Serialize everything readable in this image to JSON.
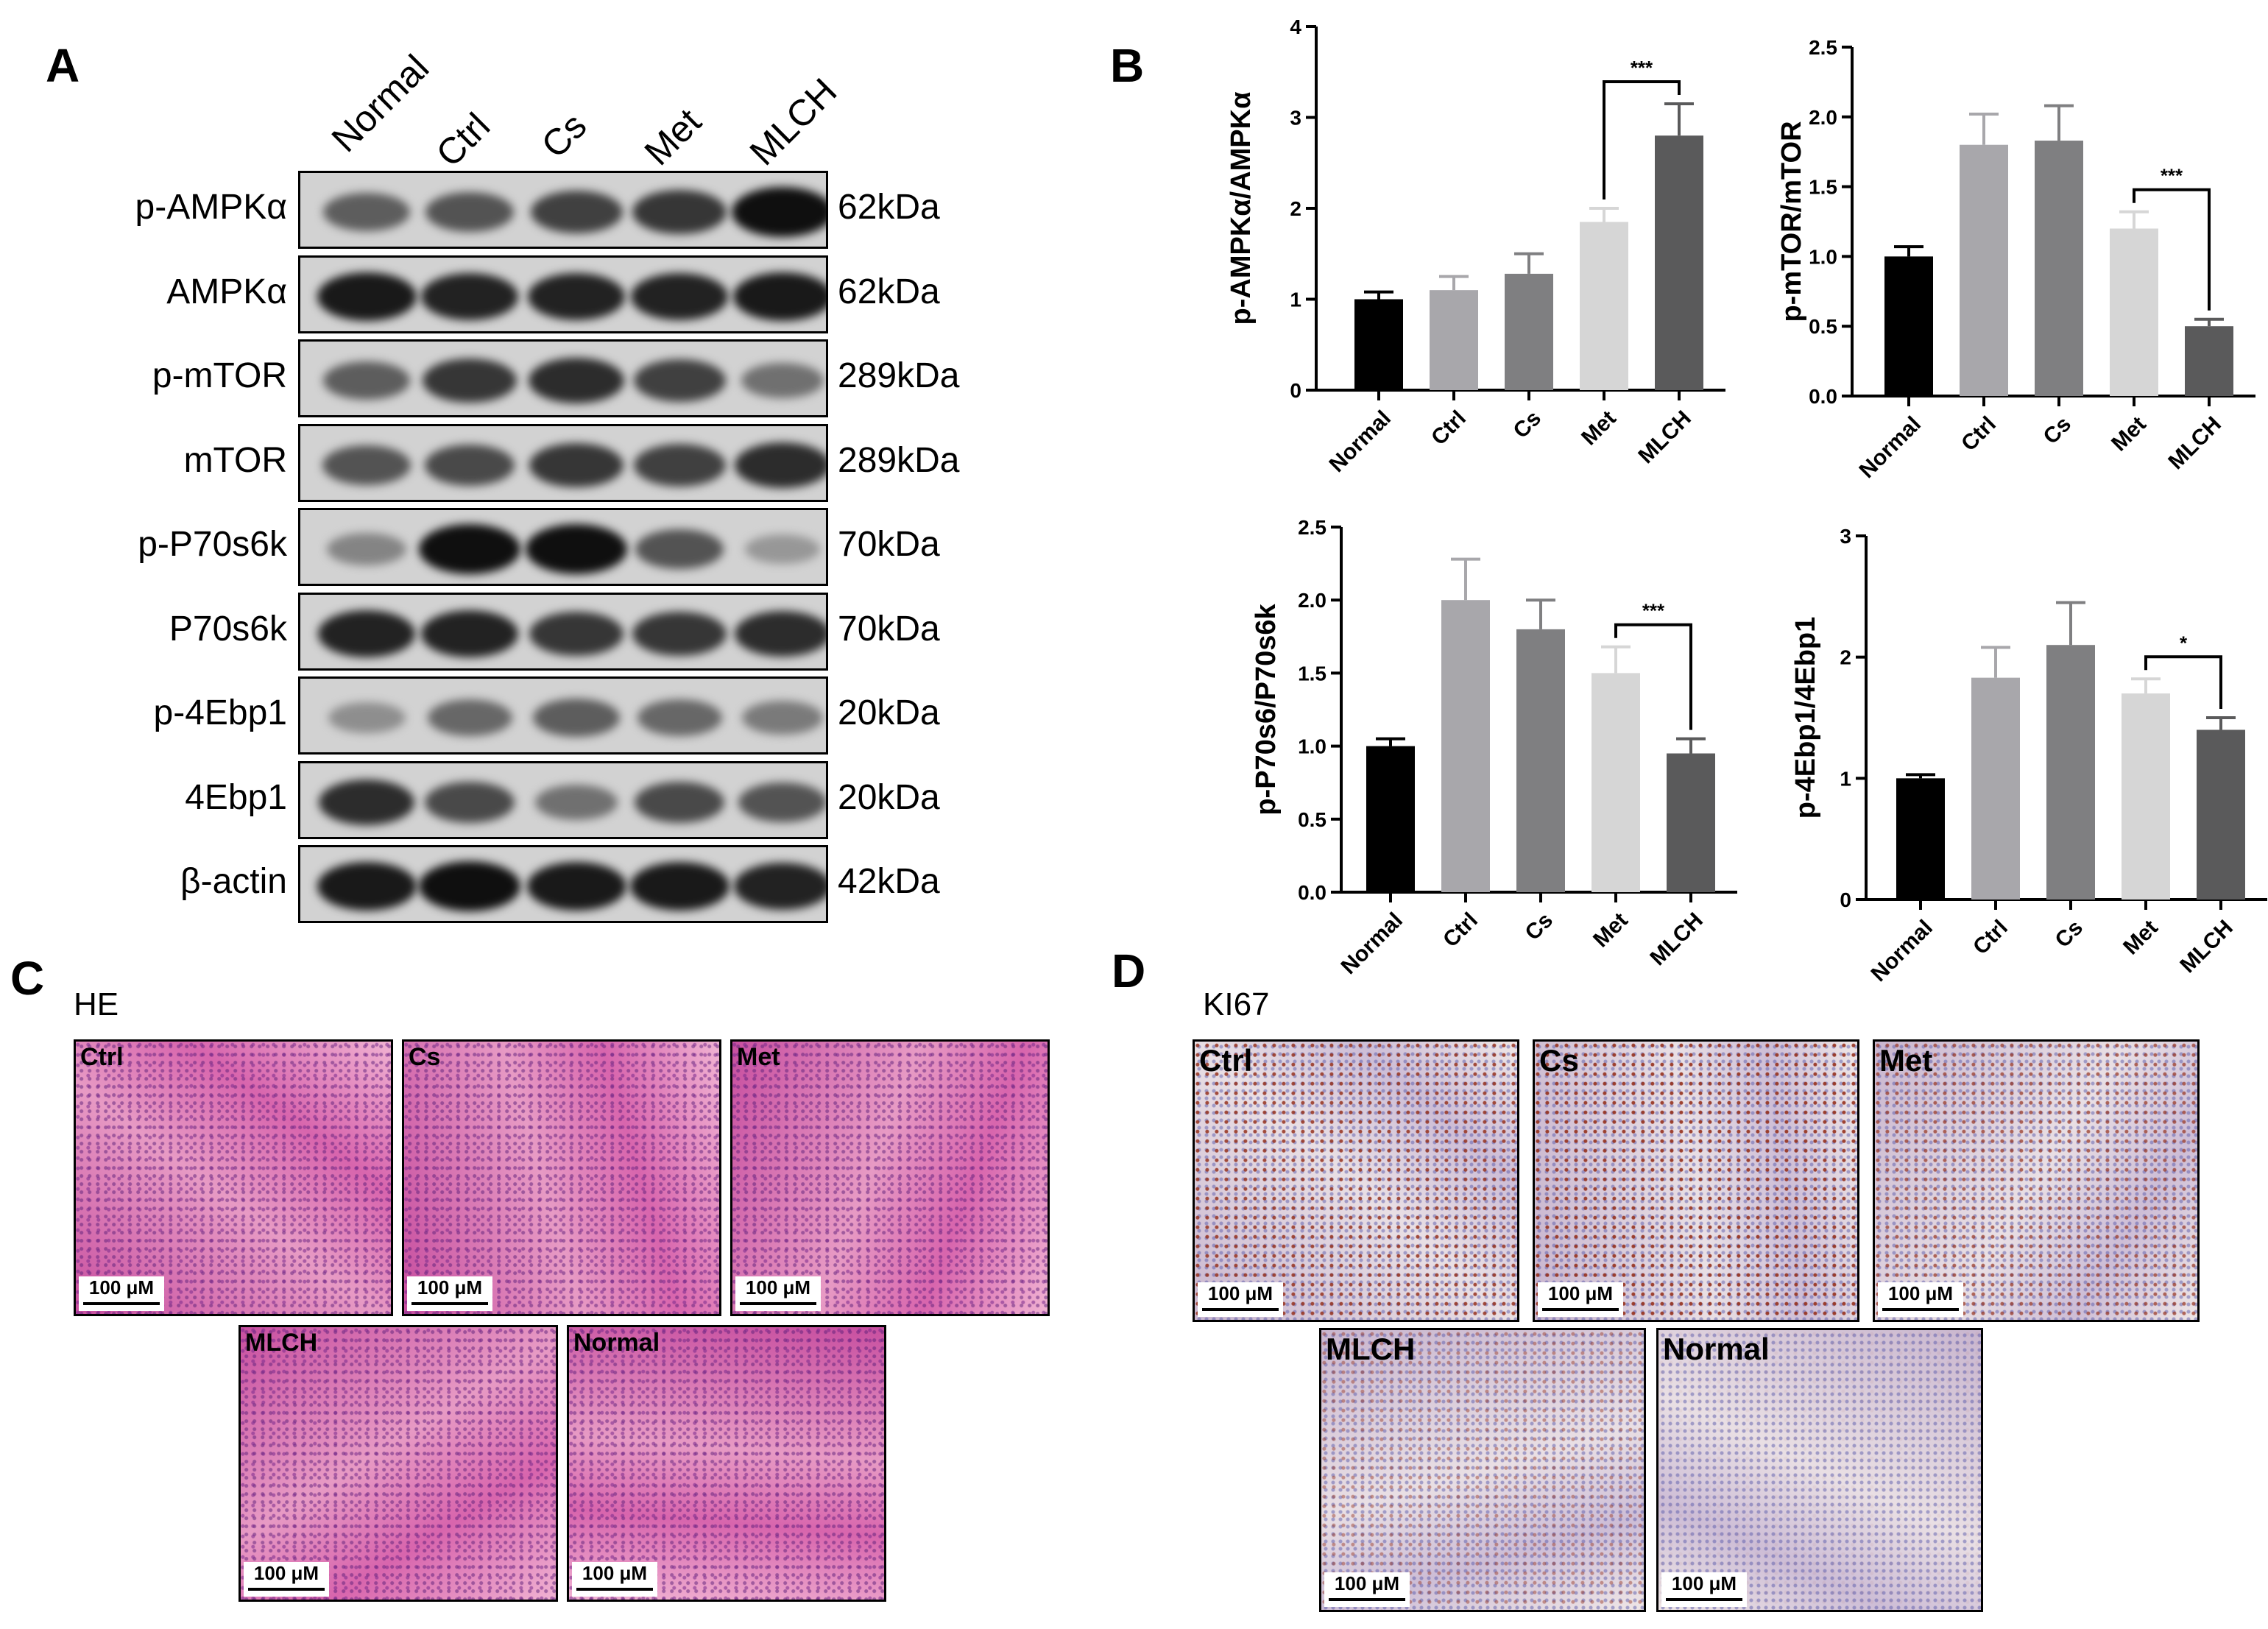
{
  "panels": {
    "a": "A",
    "b": "B",
    "c": "C",
    "d": "D"
  },
  "western_blot": {
    "lanes": [
      "Normal",
      "Ctrl",
      "Cs",
      "Met",
      "MLCH"
    ],
    "rows": [
      {
        "protein": "p-AMPKα",
        "kda": "62kDa",
        "intensity": [
          0.55,
          0.6,
          0.7,
          0.75,
          0.95
        ]
      },
      {
        "protein": "AMPKα",
        "kda": "62kDa",
        "intensity": [
          0.9,
          0.85,
          0.85,
          0.85,
          0.9
        ]
      },
      {
        "protein": "p-mTOR",
        "kda": "289kDa",
        "intensity": [
          0.55,
          0.75,
          0.8,
          0.7,
          0.45
        ]
      },
      {
        "protein": "mTOR",
        "kda": "289kDa",
        "intensity": [
          0.6,
          0.65,
          0.75,
          0.7,
          0.8
        ]
      },
      {
        "protein": "p-P70s6k",
        "kda": "70kDa",
        "intensity": [
          0.35,
          0.95,
          0.95,
          0.6,
          0.25
        ]
      },
      {
        "protein": "P70s6k",
        "kda": "70kDa",
        "intensity": [
          0.85,
          0.85,
          0.75,
          0.75,
          0.8
        ]
      },
      {
        "protein": "p-4Ebp1",
        "kda": "20kDa",
        "intensity": [
          0.3,
          0.5,
          0.55,
          0.5,
          0.4
        ]
      },
      {
        "protein": "4Ebp1",
        "kda": "20kDa",
        "intensity": [
          0.8,
          0.65,
          0.45,
          0.65,
          0.6
        ]
      },
      {
        "protein": "β-actin",
        "kda": "42kDa",
        "intensity": [
          0.9,
          0.95,
          0.9,
          0.9,
          0.85
        ]
      }
    ]
  },
  "chart_data": [
    {
      "type": "bar",
      "categories": [
        "Normal",
        "Ctrl",
        "Cs",
        "Met",
        "MLCH"
      ],
      "values": [
        1.0,
        1.1,
        1.28,
        1.85,
        2.8
      ],
      "errors": [
        0.08,
        0.15,
        0.22,
        0.15,
        0.35
      ],
      "ylabel": "p-AMPKα/AMPKα",
      "ylim": [
        0,
        4
      ],
      "yticks": [
        0,
        1,
        2,
        3,
        4
      ],
      "ytick_labels": [
        "0",
        "1",
        "2",
        "3",
        "4"
      ],
      "significance": {
        "from": 3,
        "to": 4,
        "label": "***"
      },
      "colors": [
        "#000000",
        "#a8a7ab",
        "#7f7f81",
        "#d6d6d6",
        "#5a5a5b"
      ]
    },
    {
      "type": "bar",
      "categories": [
        "Normal",
        "Ctrl",
        "Cs",
        "Met",
        "MLCH"
      ],
      "values": [
        1.0,
        1.8,
        1.83,
        1.2,
        0.5
      ],
      "errors": [
        0.07,
        0.22,
        0.25,
        0.12,
        0.05
      ],
      "ylabel": "p-mTOR/mTOR",
      "ylim": [
        0,
        2.5
      ],
      "yticks": [
        0,
        0.5,
        1.0,
        1.5,
        2.0,
        2.5
      ],
      "ytick_labels": [
        "0.0",
        "0.5",
        "1.0",
        "1.5",
        "2.0",
        "2.5"
      ],
      "significance": {
        "from": 3,
        "to": 4,
        "label": "***"
      },
      "colors": [
        "#000000",
        "#a8a7ab",
        "#7f7f81",
        "#d6d6d6",
        "#5a5a5b"
      ]
    },
    {
      "type": "bar",
      "categories": [
        "Normal",
        "Ctrl",
        "Cs",
        "Met",
        "MLCH"
      ],
      "values": [
        1.0,
        2.0,
        1.8,
        1.5,
        0.95
      ],
      "errors": [
        0.05,
        0.28,
        0.2,
        0.18,
        0.1
      ],
      "ylabel": "p-P70s6/P70s6k",
      "ylim": [
        0,
        2.5
      ],
      "yticks": [
        0,
        0.5,
        1.0,
        1.5,
        2.0,
        2.5
      ],
      "ytick_labels": [
        "0.0",
        "0.5",
        "1.0",
        "1.5",
        "2.0",
        "2.5"
      ],
      "significance": {
        "from": 3,
        "to": 4,
        "label": "***"
      },
      "colors": [
        "#000000",
        "#a8a7ab",
        "#7f7f81",
        "#d6d6d6",
        "#5a5a5b"
      ]
    },
    {
      "type": "bar",
      "categories": [
        "Normal",
        "Ctrl",
        "Cs",
        "Met",
        "MLCH"
      ],
      "values": [
        1.0,
        1.83,
        2.1,
        1.7,
        1.4
      ],
      "errors": [
        0.03,
        0.25,
        0.35,
        0.12,
        0.1
      ],
      "ylabel": "p-4Ebp1/4Ebp1",
      "ylim": [
        0,
        3
      ],
      "yticks": [
        0,
        1,
        2,
        3
      ],
      "ytick_labels": [
        "0",
        "1",
        "2",
        "3"
      ],
      "significance": {
        "from": 3,
        "to": 4,
        "label": "*"
      },
      "colors": [
        "#000000",
        "#a8a7ab",
        "#7f7f81",
        "#d6d6d6",
        "#5a5a5b"
      ]
    }
  ],
  "he": {
    "title": "HE",
    "images": [
      {
        "label": "Ctrl",
        "scale": "100 μM"
      },
      {
        "label": "Cs",
        "scale": "100 μM"
      },
      {
        "label": "Met",
        "scale": "100 μM"
      },
      {
        "label": "MLCH",
        "scale": "100 μM"
      },
      {
        "label": "Normal",
        "scale": "100 μM"
      }
    ]
  },
  "ki67": {
    "title": "KI67",
    "images": [
      {
        "label": "Ctrl",
        "scale": "100 μM"
      },
      {
        "label": "Cs",
        "scale": "100 μM"
      },
      {
        "label": "Met",
        "scale": "100 μM"
      },
      {
        "label": "MLCH",
        "scale": "100 μM"
      },
      {
        "label": "Normal",
        "scale": "100 μM"
      }
    ]
  }
}
